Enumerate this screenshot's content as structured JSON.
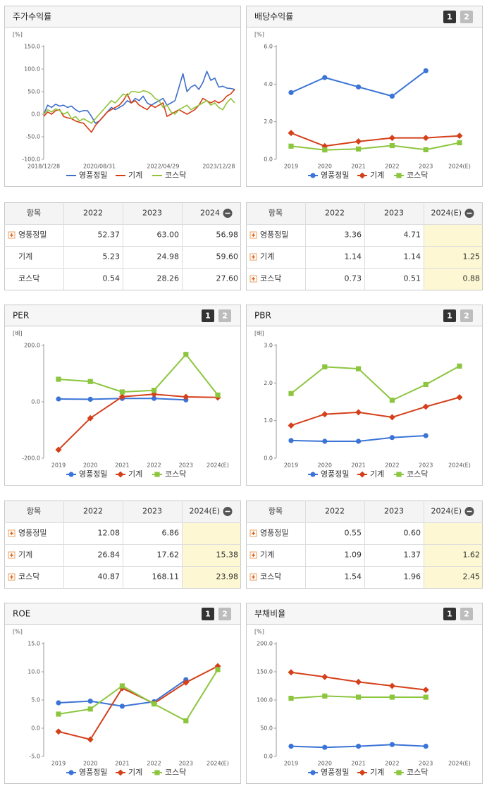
{
  "page_buttons": [
    "1",
    "2"
  ],
  "chart_data": [
    {
      "type": "line",
      "title": "주가수익률",
      "unit": "[%]",
      "categories": [
        "2018/12/28",
        null,
        null,
        null,
        null,
        null,
        null,
        null,
        null,
        null,
        null,
        null,
        null,
        null,
        "2020/08/31",
        null,
        null,
        null,
        null,
        null,
        null,
        null,
        null,
        null,
        null,
        null,
        null,
        null,
        null,
        null,
        "2022/04/29",
        null,
        null,
        null,
        null,
        null,
        null,
        null,
        null,
        null,
        null,
        null,
        null,
        null,
        "2023/12/28",
        null,
        null,
        null,
        null
      ],
      "series": [
        {
          "name": "영풍정밀",
          "color": "#3d6fc9",
          "values": [
            0,
            20,
            15,
            22,
            18,
            20,
            15,
            18,
            10,
            5,
            8,
            8,
            -5,
            -20,
            -15,
            -5,
            5,
            15,
            10,
            15,
            20,
            30,
            25,
            35,
            30,
            40,
            25,
            20,
            25,
            30,
            35,
            20,
            25,
            30,
            60,
            90,
            50,
            60,
            65,
            55,
            70,
            95,
            75,
            80,
            60,
            62,
            58,
            57,
            55
          ]
        },
        {
          "name": "기계",
          "color": "#d63c16",
          "values": [
            -5,
            5,
            0,
            8,
            10,
            -5,
            -8,
            -10,
            -15,
            -18,
            -20,
            -30,
            -40,
            -25,
            -15,
            -5,
            5,
            10,
            15,
            20,
            30,
            45,
            25,
            30,
            20,
            15,
            10,
            20,
            15,
            20,
            25,
            -5,
            0,
            5,
            10,
            5,
            0,
            5,
            10,
            20,
            35,
            30,
            25,
            30,
            25,
            30,
            40,
            45,
            55
          ]
        },
        {
          "name": "코스닥",
          "color": "#8fc43b",
          "values": [
            0,
            10,
            5,
            12,
            8,
            0,
            5,
            -10,
            -5,
            -15,
            -10,
            -15,
            -20,
            -10,
            0,
            10,
            20,
            30,
            25,
            35,
            45,
            40,
            50,
            50,
            48,
            52,
            50,
            45,
            35,
            30,
            15,
            20,
            5,
            0,
            10,
            15,
            20,
            10,
            15,
            20,
            25,
            30,
            20,
            25,
            15,
            10,
            25,
            35,
            25
          ]
        }
      ],
      "ylim": [
        -100,
        150
      ],
      "yticks": [
        {
          "value": -100,
          "label": "-100.0"
        },
        {
          "value": -50,
          "label": "-50.0"
        },
        {
          "value": 0,
          "label": "0.0"
        },
        {
          "value": 50,
          "label": "50.0"
        },
        {
          "value": 100,
          "label": "100.0"
        },
        {
          "value": 150,
          "label": "150.0"
        }
      ]
    },
    {
      "type": "line",
      "title": "배당수익률",
      "unit": "[%]",
      "show_buttons": true,
      "categories": [
        "2019",
        "2020",
        "2021",
        "2022",
        "2023",
        "2024(E)"
      ],
      "series": [
        {
          "name": "영풍정밀",
          "color": "#3b74d6",
          "marker": "circle",
          "values": [
            3.55,
            4.35,
            3.85,
            3.36,
            4.71,
            null
          ]
        },
        {
          "name": "기계",
          "color": "#d4401a",
          "marker": "diamond",
          "values": [
            1.4,
            0.7,
            0.95,
            1.14,
            1.14,
            1.25
          ]
        },
        {
          "name": "코스닥",
          "color": "#8cc63f",
          "marker": "square",
          "values": [
            0.7,
            0.5,
            0.55,
            0.73,
            0.51,
            0.88
          ]
        }
      ],
      "ylim": [
        0,
        6
      ],
      "yticks": [
        {
          "value": 0,
          "label": "0.0"
        },
        {
          "value": 2,
          "label": "2.0"
        },
        {
          "value": 4,
          "label": "4.0"
        },
        {
          "value": 6,
          "label": "6.0"
        }
      ]
    },
    {
      "type": "line",
      "title": "PER",
      "unit": "[배]",
      "show_buttons": true,
      "categories": [
        "2019",
        "2020",
        "2021",
        "2022",
        "2023",
        "2024(E)"
      ],
      "series": [
        {
          "name": "영풍정밀",
          "color": "#3b74d6",
          "marker": "circle",
          "values": [
            10,
            9,
            12,
            12.08,
            6.86,
            null
          ]
        },
        {
          "name": "기계",
          "color": "#d4401a",
          "marker": "diamond",
          "values": [
            -170,
            -58,
            18,
            26.84,
            17.62,
            15.38
          ]
        },
        {
          "name": "코스닥",
          "color": "#8cc63f",
          "marker": "square",
          "values": [
            80,
            72,
            35,
            40.87,
            168.11,
            23.98
          ]
        }
      ],
      "ylim": [
        -200,
        200
      ],
      "yticks": [
        {
          "value": -200,
          "label": "-200.0"
        },
        {
          "value": 0,
          "label": "0.0"
        },
        {
          "value": 200,
          "label": "200.0"
        }
      ]
    },
    {
      "type": "line",
      "title": "PBR",
      "unit": "[배]",
      "show_buttons": true,
      "categories": [
        "2019",
        "2020",
        "2021",
        "2022",
        "2023",
        "2024(E)"
      ],
      "series": [
        {
          "name": "영풍정밀",
          "color": "#3b74d6",
          "marker": "circle",
          "values": [
            0.47,
            0.45,
            0.45,
            0.55,
            0.6,
            null
          ]
        },
        {
          "name": "기계",
          "color": "#d4401a",
          "marker": "diamond",
          "values": [
            0.87,
            1.17,
            1.22,
            1.09,
            1.37,
            1.62
          ]
        },
        {
          "name": "코스닥",
          "color": "#8cc63f",
          "marker": "square",
          "values": [
            1.72,
            2.43,
            2.38,
            1.54,
            1.96,
            2.45
          ]
        }
      ],
      "ylim": [
        0,
        3
      ],
      "yticks": [
        {
          "value": 0,
          "label": "0.0"
        },
        {
          "value": 1,
          "label": "1.0"
        },
        {
          "value": 2,
          "label": "2.0"
        },
        {
          "value": 3,
          "label": "3.0"
        }
      ]
    },
    {
      "type": "line",
      "title": "ROE",
      "unit": "[%]",
      "show_buttons": true,
      "categories": [
        "2019",
        "2020",
        "2021",
        "2022",
        "2023",
        "2024(E)"
      ],
      "series": [
        {
          "name": "영풍정밀",
          "color": "#3b74d6",
          "marker": "circle",
          "values": [
            4.5,
            4.8,
            3.9,
            4.7,
            8.6,
            null
          ]
        },
        {
          "name": "기계",
          "color": "#d4401a",
          "marker": "diamond",
          "values": [
            -0.6,
            -2,
            7.1,
            4.4,
            8.1,
            11
          ]
        },
        {
          "name": "코스닥",
          "color": "#8cc63f",
          "marker": "square",
          "values": [
            2.5,
            3.4,
            7.5,
            4.3,
            1.3,
            10.4
          ]
        }
      ],
      "ylim": [
        -5,
        15
      ],
      "yticks": [
        {
          "value": -5,
          "label": "-5.0"
        },
        {
          "value": 0,
          "label": "0.0"
        },
        {
          "value": 5,
          "label": "5.0"
        },
        {
          "value": 10,
          "label": "10.0"
        },
        {
          "value": 15,
          "label": "15.0"
        }
      ]
    },
    {
      "type": "line",
      "title": "부채비율",
      "unit": "[%]",
      "show_buttons": true,
      "categories": [
        "2019",
        "2020",
        "2021",
        "2022",
        "2023",
        "2024(E)"
      ],
      "series": [
        {
          "name": "영풍정밀",
          "color": "#3b74d6",
          "marker": "circle",
          "values": [
            18,
            16,
            18,
            21,
            18,
            null
          ]
        },
        {
          "name": "기계",
          "color": "#d4401a",
          "marker": "diamond",
          "values": [
            149,
            141,
            132,
            125,
            118,
            null
          ]
        },
        {
          "name": "코스닥",
          "color": "#8cc63f",
          "marker": "square",
          "values": [
            103,
            107,
            105,
            105,
            105,
            null
          ]
        }
      ],
      "ylim": [
        0,
        200
      ],
      "yticks": [
        {
          "value": 0,
          "label": "0.0"
        },
        {
          "value": 50,
          "label": "50.0"
        },
        {
          "value": 100,
          "label": "100.0"
        },
        {
          "value": 150,
          "label": "150.0"
        },
        {
          "value": 200,
          "label": "200.0"
        }
      ]
    }
  ],
  "tables": [
    {
      "headers": [
        "항목",
        "2022",
        "2023",
        "2024"
      ],
      "rows": [
        {
          "name": "영풍정밀",
          "icon": true,
          "values": [
            "52.37",
            "63.00",
            "56.98"
          ]
        },
        {
          "name": "기계",
          "icon": false,
          "values": [
            "5.23",
            "24.98",
            "59.60"
          ]
        },
        {
          "name": "코스닥",
          "icon": false,
          "values": [
            "0.54",
            "28.26",
            "27.60"
          ]
        }
      ]
    },
    {
      "headers": [
        "항목",
        "2022",
        "2023",
        "2024(E)"
      ],
      "highlight_color": "#fdf8d3",
      "rows": [
        {
          "name": "영풍정밀",
          "icon": true,
          "values": [
            "3.36",
            "4.71",
            null
          ]
        },
        {
          "name": "기계",
          "icon": true,
          "values": [
            "1.14",
            "1.14",
            "1.25"
          ]
        },
        {
          "name": "코스닥",
          "icon": true,
          "values": [
            "0.73",
            "0.51",
            "0.88"
          ]
        }
      ]
    },
    {
      "headers": [
        "항목",
        "2022",
        "2023",
        "2024(E)"
      ],
      "highlight_color": "#fdf8d3",
      "rows": [
        {
          "name": "영풍정밀",
          "icon": true,
          "values": [
            "12.08",
            "6.86",
            null
          ]
        },
        {
          "name": "기계",
          "icon": true,
          "values": [
            "26.84",
            "17.62",
            "15.38"
          ]
        },
        {
          "name": "코스닥",
          "icon": true,
          "values": [
            "40.87",
            "168.11",
            "23.98"
          ]
        }
      ]
    },
    {
      "headers": [
        "항목",
        "2022",
        "2023",
        "2024(E)"
      ],
      "highlight_color": "#fdf8d3",
      "rows": [
        {
          "name": "영풍정밀",
          "icon": true,
          "values": [
            "0.55",
            "0.60",
            null
          ]
        },
        {
          "name": "기계",
          "icon": true,
          "values": [
            "1.09",
            "1.37",
            "1.62"
          ]
        },
        {
          "name": "코스닥",
          "icon": true,
          "values": [
            "1.54",
            "1.96",
            "2.45"
          ]
        }
      ]
    }
  ]
}
